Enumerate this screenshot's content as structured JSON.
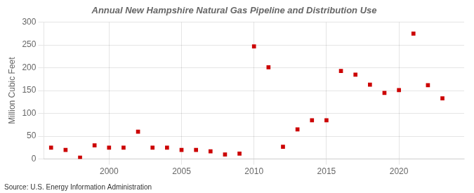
{
  "chart_data": {
    "type": "scatter",
    "title": "Annual New Hampshire Natural Gas Pipeline and Distribution Use",
    "ylabel": "Million Cubic Feet",
    "source": "Source: U.S. Energy Information Administration",
    "x": [
      1996,
      1997,
      1998,
      1999,
      2000,
      2001,
      2002,
      2003,
      2004,
      2005,
      2006,
      2007,
      2008,
      2009,
      2010,
      2011,
      2012,
      2013,
      2014,
      2015,
      2016,
      2017,
      2018,
      2019,
      2020,
      2021,
      2022,
      2023
    ],
    "values": [
      25,
      20,
      3,
      30,
      25,
      25,
      60,
      25,
      25,
      20,
      20,
      17,
      10,
      12,
      247,
      201,
      27,
      65,
      85,
      85,
      193,
      185,
      163,
      145,
      151,
      275,
      162,
      133
    ],
    "color": "#cc0000",
    "marker": "square",
    "xlim": [
      1995.5,
      2024.5
    ],
    "xticks": [
      2000,
      2005,
      2010,
      2015,
      2020
    ],
    "ylim": [
      0,
      300
    ],
    "yticks": [
      0,
      50,
      100,
      150,
      200,
      250,
      300
    ],
    "grid": true
  }
}
